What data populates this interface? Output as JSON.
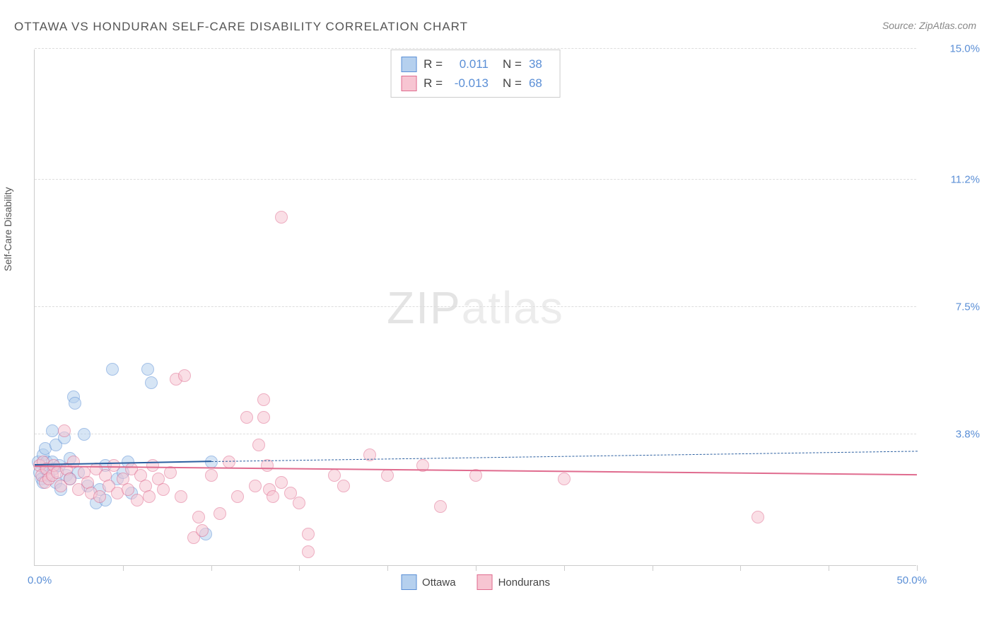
{
  "title": "OTTAWA VS HONDURAN SELF-CARE DISABILITY CORRELATION CHART",
  "source": "Source: ZipAtlas.com",
  "ylabel": "Self-Care Disability",
  "watermark_prefix": "ZIP",
  "watermark_suffix": "atlas",
  "xlim": [
    0,
    50
  ],
  "ylim": [
    0,
    15
  ],
  "ytick_labels": [
    "15.0%",
    "11.2%",
    "7.5%",
    "3.8%"
  ],
  "ytick_values": [
    15.0,
    11.2,
    7.5,
    3.8
  ],
  "xtick_values": [
    5,
    10,
    15,
    20,
    25,
    30,
    35,
    40,
    45,
    50
  ],
  "xaxis_min_label": "0.0%",
  "xaxis_max_label": "50.0%",
  "background_color": "#ffffff",
  "grid_color": "#dddddd",
  "axis_color": "#cccccc",
  "label_color": "#5b8fd6",
  "series": [
    {
      "name": "Ottawa",
      "fill": "#b5d0ee",
      "stroke": "#5b8fd6",
      "marker_radius": 9,
      "fill_opacity": 0.55,
      "R": "0.011",
      "N": "38",
      "trend": {
        "x1": 0,
        "y1": 2.9,
        "x2": 10,
        "y2": 3.0,
        "solid_to_x": 10,
        "dash_to_x": 50,
        "y_end": 3.3,
        "color": "#2b5fa0",
        "width": 2.5
      },
      "points": [
        [
          0.2,
          3.0
        ],
        [
          0.3,
          2.7
        ],
        [
          0.4,
          2.5
        ],
        [
          0.5,
          3.2
        ],
        [
          0.5,
          2.4
        ],
        [
          0.6,
          2.8
        ],
        [
          0.6,
          3.4
        ],
        [
          0.7,
          3.0
        ],
        [
          0.8,
          2.6
        ],
        [
          1.0,
          3.0
        ],
        [
          1.0,
          3.9
        ],
        [
          1.1,
          2.8
        ],
        [
          1.2,
          2.4
        ],
        [
          1.2,
          3.5
        ],
        [
          1.4,
          2.9
        ],
        [
          1.5,
          2.2
        ],
        [
          1.7,
          3.7
        ],
        [
          1.8,
          2.6
        ],
        [
          2.0,
          2.5
        ],
        [
          2.0,
          3.1
        ],
        [
          2.2,
          4.9
        ],
        [
          2.3,
          4.7
        ],
        [
          2.5,
          2.7
        ],
        [
          2.8,
          3.8
        ],
        [
          3.0,
          2.3
        ],
        [
          3.5,
          1.8
        ],
        [
          3.7,
          2.2
        ],
        [
          4.0,
          2.9
        ],
        [
          4.0,
          1.9
        ],
        [
          4.4,
          5.7
        ],
        [
          4.7,
          2.5
        ],
        [
          5.0,
          2.7
        ],
        [
          5.3,
          3.0
        ],
        [
          5.5,
          2.1
        ],
        [
          6.4,
          5.7
        ],
        [
          6.6,
          5.3
        ],
        [
          9.7,
          0.9
        ],
        [
          10.0,
          3.0
        ]
      ]
    },
    {
      "name": "Hondurans",
      "fill": "#f7c5d2",
      "stroke": "#e06c8f",
      "marker_radius": 9,
      "fill_opacity": 0.55,
      "R": "-0.013",
      "N": "68",
      "trend": {
        "x1": 0,
        "y1": 2.85,
        "x2": 50,
        "y2": 2.6,
        "solid_to_x": 50,
        "color": "#e06c8f",
        "width": 2.5
      },
      "points": [
        [
          0.3,
          2.9
        ],
        [
          0.4,
          2.6
        ],
        [
          0.5,
          3.0
        ],
        [
          0.6,
          2.4
        ],
        [
          0.7,
          2.8
        ],
        [
          0.8,
          2.5
        ],
        [
          1.0,
          2.6
        ],
        [
          1.1,
          2.9
        ],
        [
          1.3,
          2.7
        ],
        [
          1.5,
          2.3
        ],
        [
          1.7,
          3.9
        ],
        [
          1.8,
          2.8
        ],
        [
          2.0,
          2.5
        ],
        [
          2.2,
          3.0
        ],
        [
          2.5,
          2.2
        ],
        [
          2.8,
          2.7
        ],
        [
          3.0,
          2.4
        ],
        [
          3.2,
          2.1
        ],
        [
          3.5,
          2.8
        ],
        [
          3.7,
          2.0
        ],
        [
          4.0,
          2.6
        ],
        [
          4.2,
          2.3
        ],
        [
          4.5,
          2.9
        ],
        [
          4.7,
          2.1
        ],
        [
          5.0,
          2.5
        ],
        [
          5.3,
          2.2
        ],
        [
          5.5,
          2.8
        ],
        [
          5.8,
          1.9
        ],
        [
          6.0,
          2.6
        ],
        [
          6.3,
          2.3
        ],
        [
          6.5,
          2.0
        ],
        [
          6.7,
          2.9
        ],
        [
          7.0,
          2.5
        ],
        [
          7.3,
          2.2
        ],
        [
          7.7,
          2.7
        ],
        [
          8.0,
          5.4
        ],
        [
          8.3,
          2.0
        ],
        [
          8.5,
          5.5
        ],
        [
          9.0,
          0.8
        ],
        [
          9.3,
          1.4
        ],
        [
          9.5,
          1.0
        ],
        [
          10.0,
          2.6
        ],
        [
          10.5,
          1.5
        ],
        [
          11.0,
          3.0
        ],
        [
          11.5,
          2.0
        ],
        [
          12.0,
          4.3
        ],
        [
          12.5,
          2.3
        ],
        [
          12.7,
          3.5
        ],
        [
          13.0,
          4.8
        ],
        [
          13.0,
          4.3
        ],
        [
          13.2,
          2.9
        ],
        [
          13.3,
          2.2
        ],
        [
          13.5,
          2.0
        ],
        [
          14.0,
          10.1
        ],
        [
          14.0,
          2.4
        ],
        [
          14.5,
          2.1
        ],
        [
          15.0,
          1.8
        ],
        [
          15.5,
          0.4
        ],
        [
          15.5,
          0.9
        ],
        [
          17.0,
          2.6
        ],
        [
          17.5,
          2.3
        ],
        [
          19.0,
          3.2
        ],
        [
          20.0,
          2.6
        ],
        [
          22.0,
          2.9
        ],
        [
          23.0,
          1.7
        ],
        [
          25.0,
          2.6
        ],
        [
          30.0,
          2.5
        ],
        [
          41.0,
          1.4
        ]
      ]
    }
  ],
  "stats_labels": {
    "R": "R =",
    "N": "N ="
  },
  "legend_labels": [
    "Ottawa",
    "Hondurans"
  ]
}
